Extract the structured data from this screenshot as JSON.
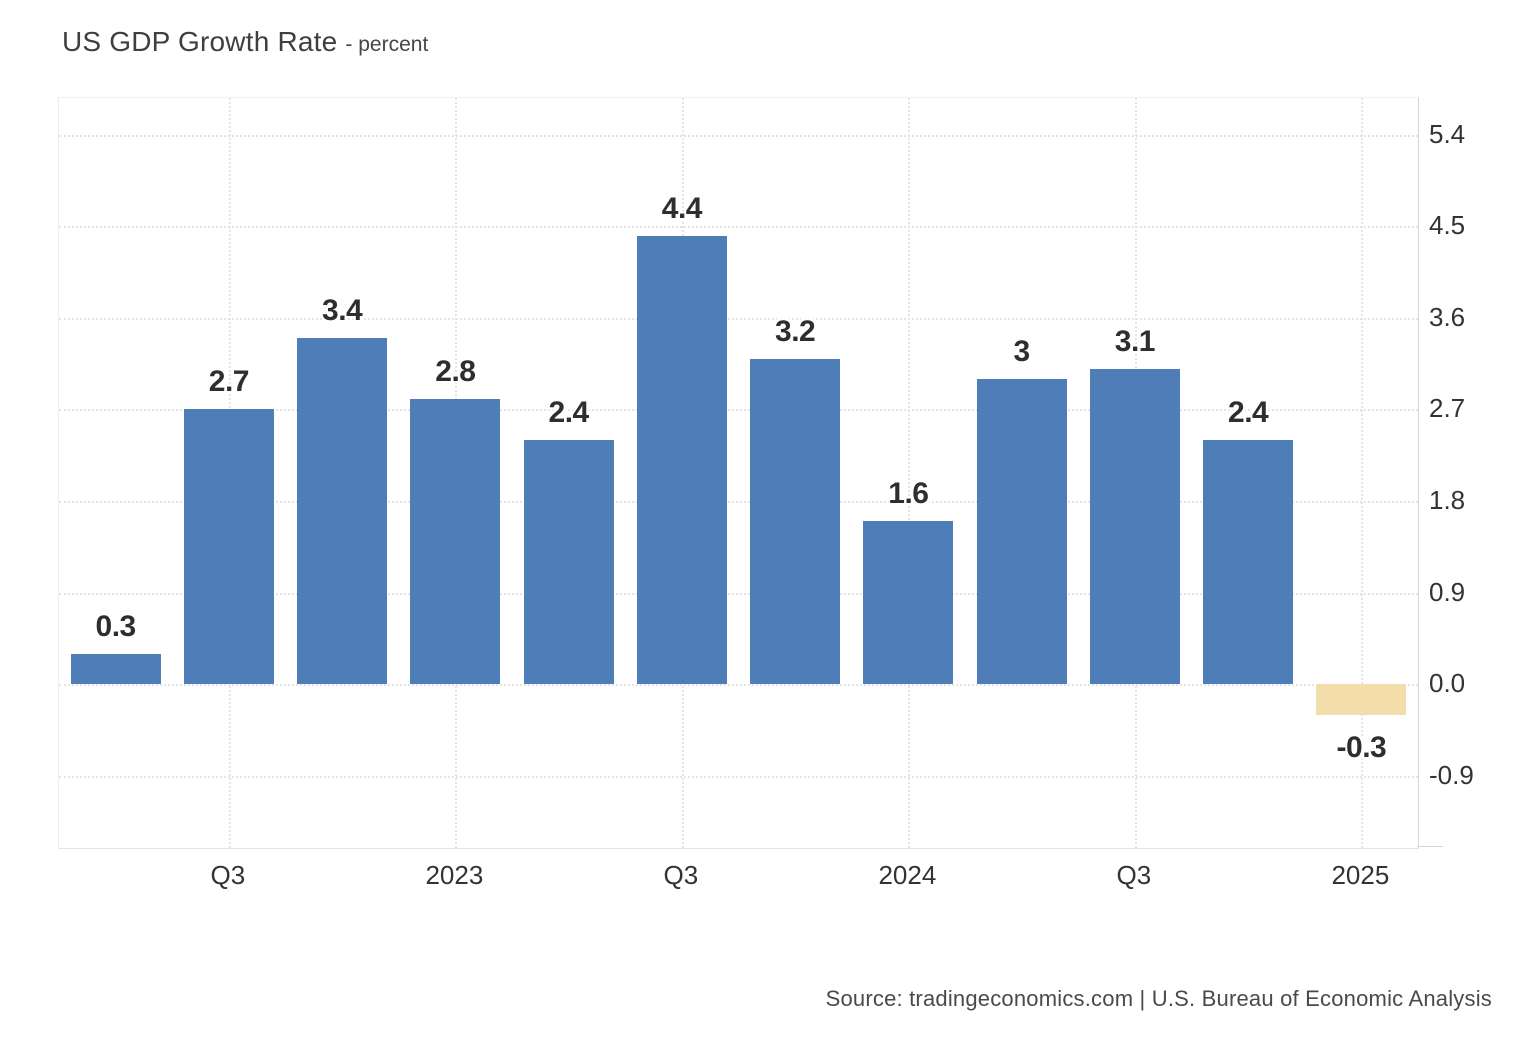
{
  "header": {
    "title": "US GDP Growth Rate",
    "subtitle": "- percent"
  },
  "footer": {
    "source": "Source: tradingeconomics.com | U.S. Bureau of Economic Analysis"
  },
  "colors": {
    "bar": "#4e7db7",
    "highlight_bar": "#f3ddab",
    "grid": "#e4e4e4",
    "axis_line": "#d6d6d6",
    "text": "#333333"
  },
  "chart_data": {
    "type": "bar",
    "title": "US GDP Growth Rate",
    "ylabel": "percent",
    "values": [
      0.3,
      2.7,
      3.4,
      2.8,
      2.4,
      4.4,
      3.2,
      1.6,
      3,
      3.1,
      2.4,
      -0.3
    ],
    "bar_labels": [
      "0.3",
      "2.7",
      "3.4",
      "2.8",
      "2.4",
      "4.4",
      "3.2",
      "1.6",
      "3",
      "3.1",
      "2.4",
      "-0.3"
    ],
    "highlight_index": 11,
    "x_ticks": [
      {
        "bar_index": 1,
        "label": "Q3"
      },
      {
        "bar_index": 3,
        "label": "2023"
      },
      {
        "bar_index": 5,
        "label": "Q3"
      },
      {
        "bar_index": 7,
        "label": "2024"
      },
      {
        "bar_index": 9,
        "label": "Q3"
      },
      {
        "bar_index": 11,
        "label": "2025"
      }
    ],
    "y_ticks": [
      {
        "value": 5.4,
        "label": "5.4"
      },
      {
        "value": 4.5,
        "label": "4.5"
      },
      {
        "value": 3.6,
        "label": "3.6"
      },
      {
        "value": 2.7,
        "label": "2.7"
      },
      {
        "value": 1.8,
        "label": "1.8"
      },
      {
        "value": 0.9,
        "label": "0.9"
      },
      {
        "value": 0.0,
        "label": "0.0"
      },
      {
        "value": -0.9,
        "label": "-0.9"
      }
    ],
    "ylim": [
      -1.61,
      5.76
    ],
    "grid": "dotted",
    "legend": "none"
  }
}
